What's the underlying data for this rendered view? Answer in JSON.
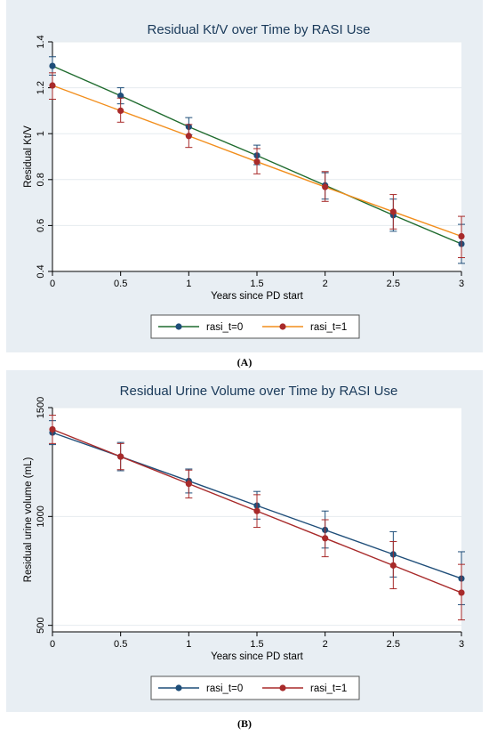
{
  "chart_data": [
    {
      "type": "line",
      "title": "Residual Kt/V over Time by RASI Use",
      "xlabel": "Years since PD start",
      "ylabel": "Residual Kt/V",
      "x": [
        0,
        0.5,
        1,
        1.5,
        2,
        2.5,
        3
      ],
      "x_ticks": [
        "0",
        "0.5",
        "1",
        "1.5",
        "2",
        "2.5",
        "3"
      ],
      "y_ticks": [
        "0.4",
        "0.6",
        "0.8",
        "1",
        "1.2",
        "1.4"
      ],
      "y_tick_values": [
        0.4,
        0.6,
        0.8,
        1.0,
        1.2,
        1.4
      ],
      "xlim": [
        0,
        3
      ],
      "ylim": [
        0.4,
        1.4
      ],
      "legend_position": "bottom",
      "series": [
        {
          "name": "rasi_t=0",
          "line_color": "#1f6b2e",
          "marker_color": "#1f4e79",
          "values": [
            1.295,
            1.165,
            1.03,
            0.905,
            0.775,
            0.645,
            0.52
          ],
          "ci_low": [
            1.255,
            1.13,
            0.995,
            0.865,
            0.715,
            0.575,
            0.435
          ],
          "ci_high": [
            1.335,
            1.2,
            1.07,
            0.95,
            0.83,
            0.715,
            0.605
          ]
        },
        {
          "name": "rasi_t=1",
          "line_color": "#f28e1c",
          "marker_color": "#a82a2a",
          "values": [
            1.21,
            1.1,
            0.99,
            0.878,
            0.768,
            0.66,
            0.553
          ],
          "ci_low": [
            1.15,
            1.05,
            0.94,
            0.825,
            0.705,
            0.585,
            0.46
          ],
          "ci_high": [
            1.265,
            1.155,
            1.04,
            0.935,
            0.835,
            0.735,
            0.64
          ]
        }
      ]
    },
    {
      "type": "line",
      "title": "Residual Urine Volume over Time by RASI Use",
      "xlabel": "Years since PD start",
      "ylabel": "Residual urine volume (mL)",
      "x": [
        0,
        0.5,
        1,
        1.5,
        2,
        2.5,
        3
      ],
      "x_ticks": [
        "0",
        "0.5",
        "1",
        "1.5",
        "2",
        "2.5",
        "3"
      ],
      "y_ticks": [
        "500",
        "1000",
        "1500"
      ],
      "y_tick_values": [
        500,
        1000,
        1500
      ],
      "xlim": [
        0,
        3
      ],
      "ylim": [
        470,
        1500
      ],
      "legend_position": "bottom",
      "series": [
        {
          "name": "rasi_t=0",
          "line_color": "#1f4e79",
          "marker_color": "#1f4e79",
          "values": [
            1385,
            1275,
            1163,
            1050,
            938,
            826,
            715
          ],
          "ci_low": [
            1330,
            1210,
            1108,
            988,
            855,
            722,
            595
          ],
          "ci_high": [
            1440,
            1340,
            1218,
            1115,
            1025,
            930,
            838
          ]
        },
        {
          "name": "rasi_t=1",
          "line_color": "#a82a2a",
          "marker_color": "#a82a2a",
          "values": [
            1400,
            1275,
            1150,
            1025,
            900,
            775,
            650
          ],
          "ci_low": [
            1335,
            1215,
            1085,
            950,
            815,
            668,
            525
          ],
          "ci_high": [
            1465,
            1335,
            1213,
            1100,
            985,
            885,
            780
          ]
        }
      ]
    }
  ],
  "captions": {
    "a": "(A)",
    "b": "(B)"
  }
}
